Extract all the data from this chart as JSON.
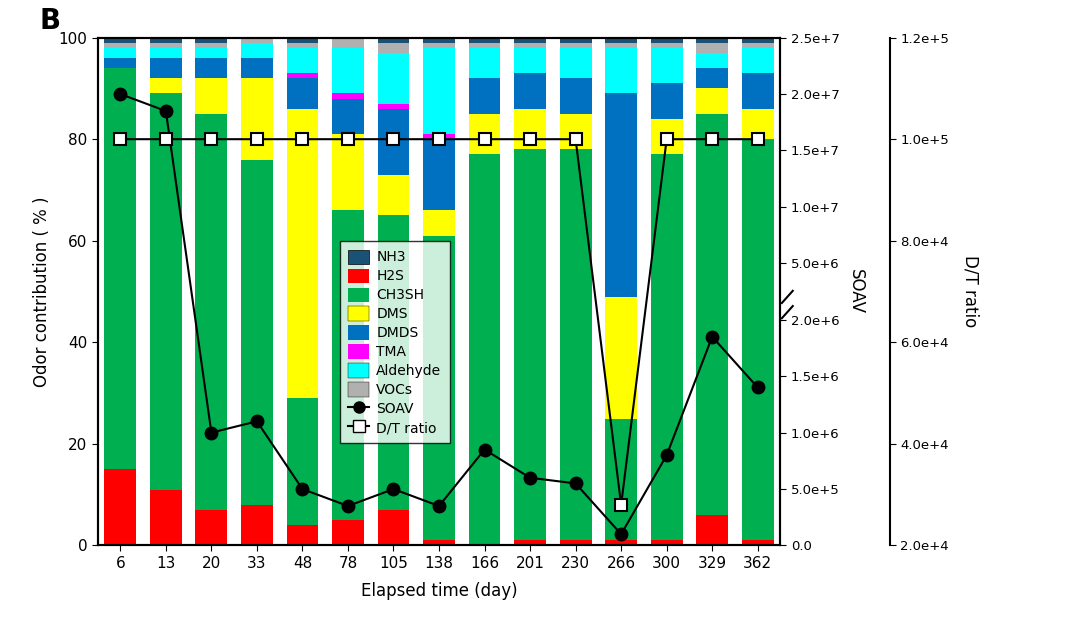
{
  "days": [
    6,
    13,
    20,
    33,
    48,
    78,
    105,
    138,
    166,
    201,
    230,
    266,
    300,
    329,
    362
  ],
  "NH3": [
    1,
    1,
    1,
    0,
    1,
    0,
    1,
    1,
    1,
    1,
    1,
    1,
    1,
    1,
    1
  ],
  "H2S": [
    15,
    11,
    7,
    8,
    4,
    5,
    7,
    1,
    0,
    1,
    1,
    1,
    1,
    6,
    1
  ],
  "CH3SH": [
    79,
    78,
    78,
    68,
    25,
    61,
    58,
    60,
    77,
    77,
    77,
    24,
    76,
    79,
    79
  ],
  "DMS": [
    0,
    3,
    7,
    16,
    57,
    15,
    8,
    5,
    8,
    8,
    7,
    24,
    7,
    5,
    6
  ],
  "DMDS": [
    2,
    4,
    4,
    4,
    6,
    7,
    13,
    14,
    7,
    7,
    7,
    40,
    7,
    4,
    7
  ],
  "TMA": [
    0,
    0,
    0,
    0,
    1,
    1,
    1,
    1,
    0,
    0,
    0,
    0,
    0,
    0,
    0
  ],
  "Aldehyde": [
    2,
    2,
    2,
    3,
    5,
    9,
    10,
    17,
    6,
    5,
    6,
    9,
    7,
    3,
    5
  ],
  "VOCs": [
    1,
    1,
    1,
    1,
    1,
    2,
    2,
    1,
    1,
    1,
    1,
    1,
    1,
    2,
    1
  ],
  "SOAV": [
    20000000.0,
    18500000.0,
    1000000.0,
    1100000.0,
    500000.0,
    350000.0,
    500000.0,
    350000.0,
    850000.0,
    600000.0,
    550000.0,
    100000.0,
    800000.0,
    1850000.0,
    1400000.0
  ],
  "DT_ratio": [
    100000.0,
    100000.0,
    100000.0,
    100000.0,
    100000.0,
    100000.0,
    100000.0,
    100000.0,
    100000.0,
    100000.0,
    100000.0,
    28000.0,
    100000.0,
    100000.0,
    100000.0
  ],
  "colors": {
    "NH3": "#1a5276",
    "H2S": "#ff0000",
    "CH3SH": "#00b050",
    "DMS": "#ffff00",
    "DMDS": "#0070c0",
    "TMA": "#ff00ff",
    "Aldehyde": "#00ffff",
    "VOCs": "#b0b0b0"
  },
  "title": "B",
  "xlabel": "Elapsed time (day)",
  "ylabel_left": "Odor contribution ( % )",
  "ylabel_right1": "SOAV",
  "ylabel_right2": "D/T ratio",
  "soav_tick_vals": [
    0.0,
    500000.0,
    1000000.0,
    1500000.0,
    2000000.0,
    5000000.0,
    10000000.0,
    15000000.0,
    20000000.0,
    25000000.0
  ],
  "soav_tick_labels": [
    "0.0",
    "5.0e+5",
    "1.0e+6",
    "1.5e+6",
    "2.0e+6",
    "5.0e+6",
    "1.0e+7",
    "1.5e+7",
    "2.0e+7",
    "2.5e+7"
  ],
  "dt_tick_vals": [
    20000.0,
    40000.0,
    60000.0,
    80000.0,
    100000.0,
    120000.0
  ],
  "dt_tick_labels": [
    "2.0e+4",
    "4.0e+4",
    "6.0e+4",
    "8.0e+4",
    "1.0e+5",
    "1.2e+5"
  ]
}
